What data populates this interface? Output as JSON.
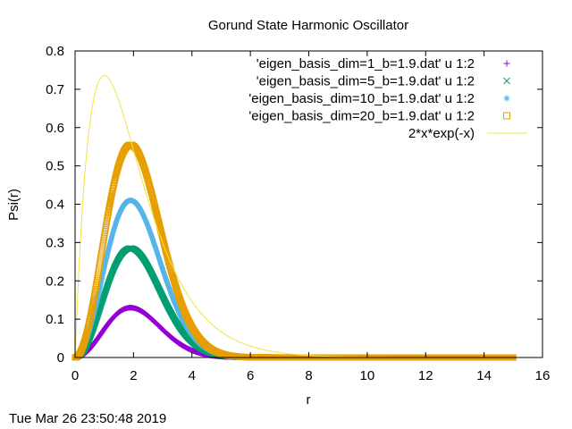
{
  "chart_data": {
    "type": "scatter",
    "title": "Gorund State Harmonic Oscillator",
    "xlabel": "r",
    "ylabel": "Psi(r)",
    "xlim": [
      0,
      16
    ],
    "ylim": [
      0,
      0.8
    ],
    "xticks": [
      0,
      2,
      4,
      6,
      8,
      10,
      12,
      14,
      16
    ],
    "yticks": [
      0,
      0.1,
      0.2,
      0.3,
      0.4,
      0.5,
      0.6,
      0.7,
      0.8
    ],
    "grid": false,
    "legend_position": "top-right",
    "timestamp": "Tue Mar 26 23:50:48 2019",
    "series": [
      {
        "name": "'eigen_basis_dim=1_b=1.9.dat' u 1:2",
        "marker": "plus",
        "color": "#9400d3",
        "x_range": [
          0,
          15
        ],
        "peak_x": 1.9,
        "peak_y": 0.13
      },
      {
        "name": "'eigen_basis_dim=5_b=1.9.dat' u 1:2",
        "marker": "cross",
        "color": "#009e73",
        "x_range": [
          0,
          15
        ],
        "peak_x": 1.9,
        "peak_y": 0.285
      },
      {
        "name": "'eigen_basis_dim=10_b=1.9.dat' u 1:2",
        "marker": "star",
        "color": "#56b4e9",
        "x_range": [
          0,
          15
        ],
        "peak_x": 1.9,
        "peak_y": 0.41
      },
      {
        "name": "'eigen_basis_dim=20_b=1.9.dat' u 1:2",
        "marker": "square",
        "color": "#e69f00",
        "x_range": [
          0,
          15
        ],
        "peak_x": 1.9,
        "peak_y": 0.555
      },
      {
        "name": "2*x*exp(-x)",
        "marker": "line",
        "color": "#f0e442",
        "x_range": [
          0,
          15
        ],
        "peak_x": 1.0,
        "peak_y": 0.7358
      }
    ]
  }
}
